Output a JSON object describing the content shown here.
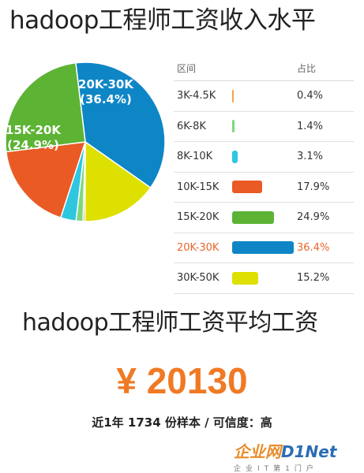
{
  "title": "hadoop工程师工资收入水平",
  "table_header": {
    "range": "区间",
    "share": "占比"
  },
  "chart_data": {
    "type": "pie",
    "title": "hadoop工程师工资收入水平",
    "categories": [
      "3K-4.5K",
      "6K-8K",
      "8K-10K",
      "10K-15K",
      "15K-20K",
      "20K-30K",
      "30K-50K"
    ],
    "values": [
      0.4,
      1.4,
      3.1,
      17.9,
      24.9,
      36.4,
      15.2
    ],
    "percent_labels": [
      "0.4%",
      "1.4%",
      "3.1%",
      "17.9%",
      "24.9%",
      "36.4%",
      "15.2%"
    ],
    "colors": [
      "#f3a44b",
      "#7dd87d",
      "#2fc6e0",
      "#ea5a25",
      "#5cb334",
      "#0e86c6",
      "#dde000"
    ],
    "highlighted": "20K-30K",
    "slice_labels": [
      {
        "category": "20K-30K",
        "line1": "20K-30K",
        "line2": "(36.4%)"
      },
      {
        "category": "15K-20K",
        "line1": "15K-20K",
        "line2": "(24.9%)"
      }
    ]
  },
  "avg_title": "hadoop工程师工资平均工资",
  "avg_salary": "¥ 20130",
  "sample_info": "近1年 1734 份样本 / 可信度：高",
  "logo": {
    "part1": "企业网",
    "part2": "D1Net",
    "sub": "企业IT第1门户"
  }
}
